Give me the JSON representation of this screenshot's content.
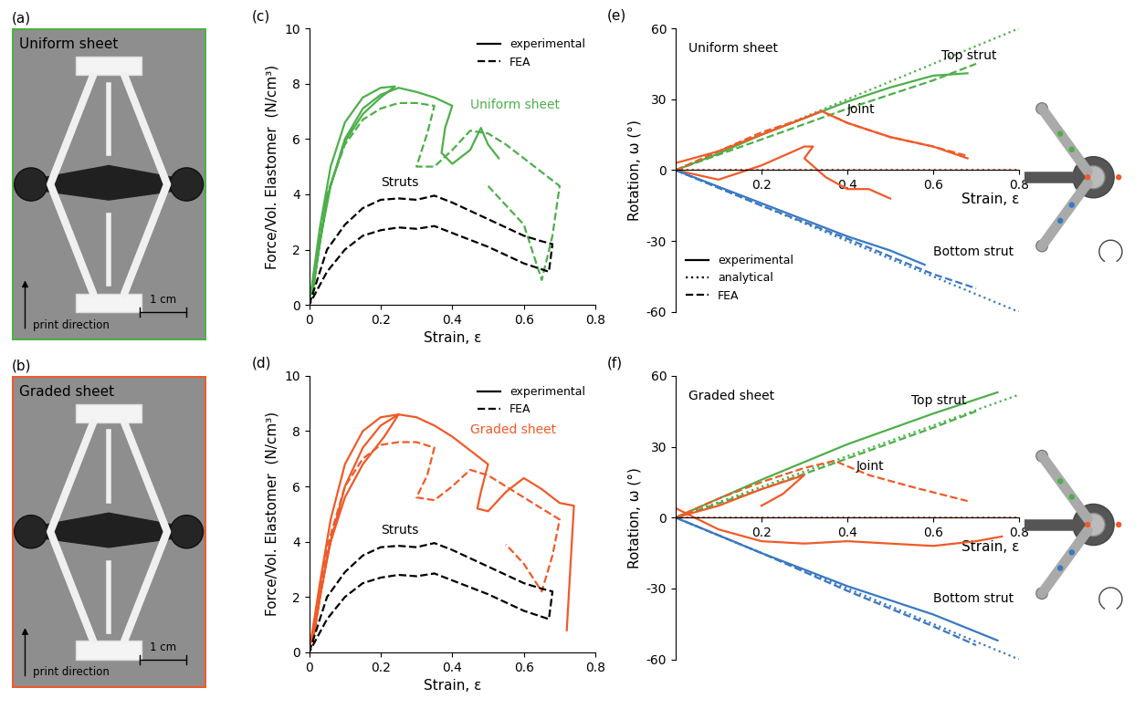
{
  "chart_data": [
    {
      "type": "photo",
      "panel_label": "(a)",
      "title": "Uniform sheet",
      "direction_label": "print direction",
      "scale_label": "1 cm",
      "color": "#4daf4a"
    },
    {
      "type": "photo",
      "panel_label": "(b)",
      "title": "Graded sheet",
      "direction_label": "print direction",
      "scale_label": "1 cm",
      "color": "#f05a28"
    },
    {
      "type": "line",
      "panel_label": "(c)",
      "x_label": "Strain, ε",
      "y_label": "Force/Vol. Elastomer  (N/cm³)",
      "xlim": [
        0,
        0.8
      ],
      "xticks": [
        0,
        0.2,
        0.4,
        0.6,
        0.8
      ],
      "ylim": [
        0,
        10
      ],
      "yticks": [
        0,
        2,
        4,
        6,
        8,
        10
      ],
      "legend": "upper right",
      "series": [
        {
          "name": "experimental",
          "color": "#4daf4a",
          "line_style": "solid",
          "x": [
            0,
            0.03,
            0.06,
            0.1,
            0.15,
            0.2,
            0.24,
            0.2,
            0.15,
            0.1,
            0.06,
            0.03,
            0.01,
            0.05,
            0.1,
            0.15,
            0.2,
            0.25,
            0.3,
            0.35,
            0.4,
            0.38,
            0.37,
            0.4,
            0.45,
            0.48,
            0.5,
            0.53
          ],
          "values": [
            0,
            2.8,
            5.0,
            6.6,
            7.5,
            7.85,
            7.9,
            7.5,
            6.9,
            5.9,
            4.3,
            2.3,
            0.5,
            3.9,
            6.0,
            7.1,
            7.6,
            7.85,
            7.7,
            7.5,
            7.2,
            6.4,
            5.5,
            5.1,
            5.6,
            6.4,
            5.8,
            5.3
          ]
        },
        {
          "name": "FEA",
          "color": "#4daf4a",
          "line_style": "dashed",
          "x": [
            0,
            0.05,
            0.1,
            0.15,
            0.2,
            0.25,
            0.3,
            0.35,
            0.33,
            0.3,
            0.35,
            0.4,
            0.45,
            0.5,
            0.55,
            0.6,
            0.65,
            0.7,
            0.68,
            0.65,
            0.6,
            0.55,
            0.5
          ],
          "values": [
            0,
            4.0,
            5.8,
            6.7,
            7.1,
            7.3,
            7.3,
            7.2,
            6.2,
            5.0,
            5.0,
            5.6,
            6.3,
            6.2,
            5.8,
            5.3,
            4.8,
            4.3,
            2.5,
            0.9,
            2.9,
            3.6,
            4.3
          ]
        },
        {
          "color": "#000000",
          "line_style": "dashed",
          "x": [
            0,
            0.05,
            0.1,
            0.15,
            0.2,
            0.25,
            0.3,
            0.35,
            0.4,
            0.45,
            0.5,
            0.55,
            0.6,
            0.65,
            0.68,
            0.67,
            0.6,
            0.5,
            0.4,
            0.35,
            0.3,
            0.25,
            0.2,
            0.15,
            0.1,
            0.05,
            0
          ],
          "values": [
            0,
            2.0,
            2.9,
            3.5,
            3.8,
            3.85,
            3.8,
            3.95,
            3.7,
            3.4,
            3.1,
            2.8,
            2.5,
            2.3,
            2.2,
            1.2,
            1.5,
            2.1,
            2.6,
            2.85,
            2.75,
            2.8,
            2.7,
            2.5,
            2.0,
            1.2,
            0
          ]
        }
      ],
      "annotations": [
        {
          "text": "Uniform sheet",
          "x": 0.45,
          "y": 7.1,
          "color": "#4daf4a"
        },
        {
          "text": "Struts",
          "x": 0.2,
          "y": 4.3,
          "color": "#000000"
        }
      ]
    },
    {
      "type": "line",
      "panel_label": "(d)",
      "x_label": "Strain, ε",
      "y_label": "Force/Vol. Elastomer  (N/cm³)",
      "xlim": [
        0,
        0.8
      ],
      "xticks": [
        0,
        0.2,
        0.4,
        0.6,
        0.8
      ],
      "ylim": [
        0,
        10
      ],
      "yticks": [
        0,
        2,
        4,
        6,
        8,
        10
      ],
      "legend": "upper right",
      "series": [
        {
          "name": "experimental",
          "color": "#f05a28",
          "line_style": "solid",
          "x": [
            0,
            0.03,
            0.06,
            0.1,
            0.15,
            0.2,
            0.25,
            0.21,
            0.15,
            0.1,
            0.06,
            0.03,
            0.01,
            0.05,
            0.1,
            0.15,
            0.2,
            0.25,
            0.3,
            0.35,
            0.4,
            0.45,
            0.5,
            0.48,
            0.47,
            0.5,
            0.55,
            0.6,
            0.65,
            0.7,
            0.74,
            0.72
          ],
          "values": [
            0,
            2.5,
            4.8,
            6.8,
            8.0,
            8.5,
            8.6,
            7.8,
            6.8,
            5.6,
            4.0,
            2.0,
            0.4,
            3.5,
            6.0,
            7.4,
            8.2,
            8.6,
            8.5,
            8.2,
            7.8,
            7.3,
            6.8,
            5.8,
            5.2,
            5.1,
            5.8,
            6.3,
            5.9,
            5.4,
            5.3,
            0.8
          ]
        },
        {
          "name": "FEA",
          "color": "#f05a28",
          "line_style": "dashed",
          "x": [
            0,
            0.05,
            0.1,
            0.15,
            0.2,
            0.25,
            0.3,
            0.35,
            0.33,
            0.3,
            0.35,
            0.4,
            0.45,
            0.5,
            0.55,
            0.6,
            0.65,
            0.7,
            0.68,
            0.65,
            0.6,
            0.55
          ],
          "values": [
            0,
            3.8,
            6.0,
            7.0,
            7.5,
            7.6,
            7.6,
            7.4,
            6.4,
            5.6,
            5.5,
            6.0,
            6.6,
            6.4,
            6.0,
            5.6,
            5.2,
            4.8,
            3.5,
            2.2,
            3.2,
            3.9
          ]
        },
        {
          "color": "#000000",
          "line_style": "dashed",
          "x": [
            0,
            0.05,
            0.1,
            0.15,
            0.2,
            0.25,
            0.3,
            0.35,
            0.4,
            0.45,
            0.5,
            0.55,
            0.6,
            0.65,
            0.68,
            0.67,
            0.6,
            0.5,
            0.4,
            0.35,
            0.3,
            0.25,
            0.2,
            0.15,
            0.1,
            0.05,
            0
          ],
          "values": [
            0,
            2.0,
            2.9,
            3.5,
            3.8,
            3.85,
            3.8,
            3.95,
            3.7,
            3.4,
            3.1,
            2.8,
            2.5,
            2.3,
            2.2,
            1.2,
            1.5,
            2.1,
            2.6,
            2.85,
            2.75,
            2.8,
            2.7,
            2.5,
            2.0,
            1.2,
            0
          ]
        }
      ],
      "annotations": [
        {
          "text": "Graded sheet",
          "x": 0.45,
          "y": 7.9,
          "color": "#f05a28"
        },
        {
          "text": "Struts",
          "x": 0.2,
          "y": 4.3,
          "color": "#000000"
        }
      ]
    },
    {
      "type": "line",
      "panel_label": "(e)",
      "x_label": "Strain, ε",
      "y_label": "Rotation, ω (°)",
      "xlim": [
        0,
        0.8
      ],
      "xticks": [
        0.2,
        0.4,
        0.6,
        0.8
      ],
      "ylim": [
        -60,
        60
      ],
      "yticks": [
        -60,
        -30,
        0,
        30,
        60
      ],
      "legend": "lower left",
      "series": [
        {
          "name": "experimental",
          "color": "#4daf4a",
          "line_style": "solid",
          "x": [
            0,
            0.1,
            0.2,
            0.3,
            0.4,
            0.5,
            0.6,
            0.68
          ],
          "values": [
            0,
            7,
            15,
            22,
            29,
            35,
            40,
            41
          ]
        },
        {
          "name": "analytical",
          "color": "#4daf4a",
          "line_style": "dotted",
          "x": [
            0,
            0.2,
            0.4,
            0.6,
            0.8
          ],
          "values": [
            0,
            15,
            30,
            45,
            60
          ]
        },
        {
          "name": "FEA",
          "color": "#4daf4a",
          "line_style": "dashed",
          "x": [
            0,
            0.2,
            0.4,
            0.6,
            0.7
          ],
          "values": [
            0,
            13,
            26,
            38,
            45
          ]
        },
        {
          "name": "experimental",
          "color": "#f05a28",
          "line_style": "solid",
          "x": [
            0,
            0.1,
            0.2,
            0.3,
            0.34,
            0.4,
            0.5,
            0.6,
            0.68
          ],
          "values": [
            3,
            8,
            15,
            22,
            25,
            20,
            14,
            10,
            5
          ]
        },
        {
          "name": "experimental",
          "color": "#f05a28",
          "line_style": "solid",
          "x": [
            0,
            0.1,
            0.2,
            0.3,
            0.32,
            0.3,
            0.35,
            0.4,
            0.45,
            0.5
          ],
          "values": [
            0,
            -4,
            2,
            10,
            10,
            5,
            -3,
            -8,
            -8,
            -12
          ]
        },
        {
          "name": "analytical",
          "color": "#f05a28",
          "line_style": "dotted",
          "x": [
            0,
            0.8
          ],
          "values": [
            0,
            0
          ]
        },
        {
          "name": "FEA",
          "color": "#f05a28",
          "line_style": "dashed",
          "x": [
            0,
            0.1,
            0.2,
            0.3,
            0.34,
            0.4,
            0.5,
            0.6,
            0.68
          ],
          "values": [
            0,
            8,
            16,
            22,
            25,
            20,
            14,
            10,
            6
          ]
        },
        {
          "name": "experimental",
          "color": "#3a78c2",
          "line_style": "solid",
          "x": [
            0,
            0.1,
            0.2,
            0.3,
            0.4,
            0.5,
            0.58
          ],
          "values": [
            0,
            -7,
            -14,
            -21,
            -28,
            -34,
            -40
          ]
        },
        {
          "name": "analytical",
          "color": "#3a78c2",
          "line_style": "dotted",
          "x": [
            0,
            0.2,
            0.4,
            0.6,
            0.8
          ],
          "values": [
            0,
            -15,
            -30,
            -45,
            -60
          ]
        },
        {
          "name": "FEA",
          "color": "#3a78c2",
          "line_style": "dashed",
          "x": [
            0,
            0.2,
            0.4,
            0.6,
            0.7
          ],
          "values": [
            0,
            -15,
            -29,
            -44,
            -50
          ]
        }
      ],
      "annotations": [
        {
          "text": "Uniform sheet",
          "x": 0.03,
          "y": 50,
          "color": "#000000"
        },
        {
          "text": "Top strut",
          "x": 0.62,
          "y": 47,
          "color": "#000000"
        },
        {
          "text": "Joint",
          "x": 0.4,
          "y": 24,
          "color": "#000000"
        },
        {
          "text": "Bottom strut",
          "x": 0.6,
          "y": -36,
          "color": "#000000"
        }
      ]
    },
    {
      "type": "line",
      "panel_label": "(f)",
      "x_label": "Strain, ε",
      "y_label": "Rotation, ω (°)",
      "xlim": [
        0,
        0.8
      ],
      "xticks": [
        0.2,
        0.4,
        0.6,
        0.8
      ],
      "ylim": [
        -60,
        60
      ],
      "yticks": [
        -60,
        -30,
        0,
        30,
        60
      ],
      "series": [
        {
          "color": "#4daf4a",
          "line_style": "solid",
          "x": [
            0,
            0.2,
            0.4,
            0.6,
            0.75
          ],
          "values": [
            0,
            16,
            31,
            44,
            53
          ]
        },
        {
          "color": "#4daf4a",
          "line_style": "dotted",
          "x": [
            0,
            0.2,
            0.4,
            0.6,
            0.8
          ],
          "values": [
            0,
            13,
            26,
            39,
            52
          ]
        },
        {
          "color": "#4daf4a",
          "line_style": "dashed",
          "x": [
            0,
            0.2,
            0.4,
            0.6,
            0.7
          ],
          "values": [
            0,
            12,
            25,
            38,
            45
          ]
        },
        {
          "color": "#f05a28",
          "line_style": "solid",
          "x": [
            0,
            0.1,
            0.2,
            0.3,
            0.4,
            0.5,
            0.6,
            0.7,
            0.76
          ],
          "values": [
            4,
            -5,
            -10,
            -11,
            -10,
            -11,
            -12,
            -10,
            -8
          ]
        },
        {
          "color": "#f05a28",
          "line_style": "solid",
          "x": [
            0,
            0.1,
            0.2,
            0.3,
            0.25,
            0.2
          ],
          "values": [
            0,
            5,
            12,
            18,
            10,
            5
          ]
        },
        {
          "color": "#f05a28",
          "line_style": "dotted",
          "x": [
            0,
            0.8
          ],
          "values": [
            0,
            0
          ]
        },
        {
          "color": "#f05a28",
          "line_style": "dashed",
          "x": [
            0,
            0.1,
            0.2,
            0.3,
            0.37,
            0.45,
            0.55,
            0.68
          ],
          "values": [
            0,
            8,
            15,
            21,
            24,
            18,
            13,
            7
          ]
        },
        {
          "color": "#3a78c2",
          "line_style": "solid",
          "x": [
            0,
            0.2,
            0.4,
            0.6,
            0.75
          ],
          "values": [
            0,
            -15,
            -29,
            -41,
            -52
          ]
        },
        {
          "color": "#3a78c2",
          "line_style": "dotted",
          "x": [
            0,
            0.2,
            0.4,
            0.6,
            0.8
          ],
          "values": [
            0,
            -15,
            -30,
            -45,
            -60
          ]
        },
        {
          "color": "#3a78c2",
          "line_style": "dashed",
          "x": [
            0,
            0.2,
            0.4,
            0.6,
            0.7
          ],
          "values": [
            0,
            -15,
            -31,
            -46,
            -54
          ]
        }
      ],
      "annotations": [
        {
          "text": "Graded sheet",
          "x": 0.03,
          "y": 50,
          "color": "#000000"
        },
        {
          "text": "Top strut",
          "x": 0.55,
          "y": 48,
          "color": "#000000"
        },
        {
          "text": "Joint",
          "x": 0.42,
          "y": 20,
          "color": "#000000"
        },
        {
          "text": "Bottom strut",
          "x": 0.6,
          "y": -36,
          "color": "#000000"
        }
      ]
    }
  ]
}
